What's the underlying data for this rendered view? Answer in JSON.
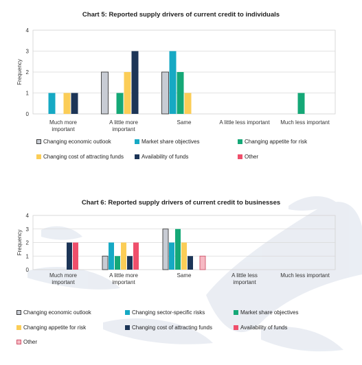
{
  "chart_data": [
    {
      "type": "bar",
      "title": "Chart 5: Reported supply drivers of current credit to individuals",
      "ylabel": "Frequency",
      "ylim": [
        0,
        4
      ],
      "yticks": [
        "0",
        "1",
        "2",
        "3",
        "4"
      ],
      "categories": [
        [
          "Much more",
          "important"
        ],
        [
          "A little more",
          "important"
        ],
        [
          "Same"
        ],
        [
          "A little less important"
        ],
        [
          "Much less important"
        ]
      ],
      "series": [
        {
          "name": "Changing economic outlook",
          "color": "#c8ccd4",
          "values": [
            0,
            2,
            2,
            0,
            0
          ]
        },
        {
          "name": "Market share objectives",
          "color": "#16a9c4",
          "values": [
            1,
            0,
            3,
            0,
            0
          ]
        },
        {
          "name": "Changing appetite for risk",
          "color": "#15a877",
          "values": [
            0,
            1,
            2,
            0,
            1
          ]
        },
        {
          "name": "Changing cost of attracting funds",
          "color": "#fbcd57",
          "values": [
            1,
            2,
            1,
            0,
            0
          ]
        },
        {
          "name": "Availability of funds",
          "color": "#1c3557",
          "values": [
            1,
            3,
            0,
            0,
            0
          ]
        },
        {
          "name": "Other",
          "color": "#ef4f6b",
          "values": [
            0,
            0,
            0,
            0,
            0
          ]
        }
      ],
      "legend_position": "bottom"
    },
    {
      "type": "bar",
      "title": "Chart 6: Reported supply drivers of current credit to businesses",
      "ylabel": "Frequency",
      "ylim": [
        0,
        4
      ],
      "yticks": [
        "0",
        "1",
        "2",
        "3",
        "4"
      ],
      "categories": [
        [
          "Much more",
          "important"
        ],
        [
          "A little more",
          "important"
        ],
        [
          "Same"
        ],
        [
          "A little less",
          "important"
        ],
        [
          "Much less important"
        ]
      ],
      "series": [
        {
          "name": "Changing economic outlook",
          "color": "#c8ccd4",
          "values": [
            0,
            1,
            3,
            0,
            0
          ]
        },
        {
          "name": "Changing sector-specific risks",
          "color": "#16a9c4",
          "values": [
            0,
            2,
            2,
            0,
            0
          ]
        },
        {
          "name": "Market share objectives",
          "color": "#15a877",
          "values": [
            0,
            1,
            3,
            0,
            0
          ]
        },
        {
          "name": "Changing appetite for risk",
          "color": "#fbcd57",
          "values": [
            0,
            2,
            2,
            0,
            0
          ]
        },
        {
          "name": "Changing cost of attracting funds",
          "color": "#1c3557",
          "values": [
            2,
            1,
            1,
            0,
            0
          ]
        },
        {
          "name": "Availability of funds",
          "color": "#ef4f6b",
          "values": [
            2,
            2,
            0,
            0,
            0
          ]
        },
        {
          "name": "Other",
          "color": "#f6b9c3",
          "values": [
            0,
            0,
            1,
            0,
            0
          ]
        }
      ],
      "legend_position": "bottom"
    }
  ]
}
